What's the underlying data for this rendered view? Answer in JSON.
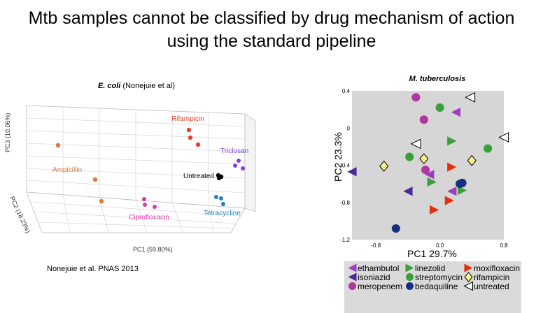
{
  "slide": {
    "title_line1": "Mtb samples cannot be classified by drug mechanism of action",
    "title_line2": "using the standard pipeline"
  },
  "left_panel": {
    "title_bold": "E. coli",
    "title_rest": " (Nonejuie et al)",
    "citation": "Nonejuie et al. PNAS 2013"
  },
  "chart_data": [
    {
      "type": "scatter",
      "title": "E. coli (Nonejuie et al)",
      "xlabel": "PC1 (59.80%)",
      "ylabel": "PC2 (18.23%)",
      "zlabel": "PC3 (10.06%)",
      "projection": "3d",
      "grid": true,
      "groups": [
        {
          "name": "Rifampicin",
          "color": "#e8412c"
        },
        {
          "name": "Triclosan",
          "color": "#8a3fd1"
        },
        {
          "name": "Ampicillin",
          "color": "#e07a3a"
        },
        {
          "name": "Untreated",
          "color": "#000000"
        },
        {
          "name": "Ciprofloxacin",
          "color": "#d63aa8"
        },
        {
          "name": "Tetracycline",
          "color": "#1f82c2"
        }
      ]
    },
    {
      "type": "scatter",
      "title": "M. tuberculosis",
      "xlabel": "PC1 29.7%",
      "ylabel": "PC2 23.3%",
      "xlim": [
        -1.1,
        0.8
      ],
      "ylim": [
        -1.2,
        0.4
      ],
      "xticks": [
        "-0.8",
        "0.0",
        "0.8"
      ],
      "yticks": [
        "0.4",
        "0",
        "-0.4",
        "-0.8",
        "-1.2"
      ],
      "grid": false,
      "legend_position": "bottom",
      "series": [
        {
          "name": "ethambutol",
          "marker": "tri-left",
          "color": "#a03cc0",
          "points": [
            [
              0.2,
              0.17
            ],
            [
              -0.13,
              -0.5
            ],
            [
              0.15,
              -0.68
            ]
          ]
        },
        {
          "name": "isoniazid",
          "marker": "tri-left",
          "color": "#4b2a9a",
          "points": [
            [
              -1.1,
              -0.47
            ],
            [
              -0.4,
              -0.68
            ]
          ]
        },
        {
          "name": "meropenem",
          "marker": "circle",
          "color": "#b2369f",
          "points": [
            [
              -0.3,
              0.33
            ],
            [
              -0.2,
              0.09
            ],
            [
              -0.18,
              -0.45
            ]
          ]
        },
        {
          "name": "linezolid",
          "marker": "tri-right",
          "color": "#3aa03a",
          "points": [
            [
              0.15,
              -0.14
            ],
            [
              -0.1,
              -0.58
            ],
            [
              0.28,
              -0.67
            ]
          ]
        },
        {
          "name": "streptomycin",
          "marker": "circle",
          "color": "#3aa03a",
          "points": [
            [
              0.0,
              0.22
            ],
            [
              -0.38,
              -0.31
            ],
            [
              0.6,
              -0.22
            ]
          ]
        },
        {
          "name": "moxifloxacin",
          "marker": "tri-right",
          "color": "#e53010",
          "points": [
            [
              0.15,
              -0.42
            ],
            [
              -0.07,
              -0.88
            ],
            [
              0.12,
              -0.78
            ]
          ]
        },
        {
          "name": "bedaquiline",
          "marker": "circle",
          "color": "#1a2e80",
          "points": [
            [
              -0.55,
              -1.08
            ],
            [
              0.25,
              -0.6
            ],
            [
              0.28,
              -0.59
            ]
          ]
        },
        {
          "name": "rifampicin",
          "marker": "diamond",
          "color": "#f5f08a",
          "points": [
            [
              -0.7,
              -0.41
            ],
            [
              -0.2,
              -0.33
            ],
            [
              0.4,
              -0.35
            ]
          ]
        },
        {
          "name": "untreated",
          "marker": "tri-left",
          "color": "#ffffff",
          "points": [
            [
              0.38,
              0.33
            ],
            [
              0.8,
              -0.1
            ],
            [
              -0.3,
              -0.17
            ]
          ]
        }
      ]
    }
  ],
  "mtb_panel": {
    "title": "M. tuberculosis",
    "xlabel": "PC1 29.7%",
    "ylabel": "PC2 23.3%",
    "legend": [
      {
        "label": "ethambutol",
        "marker": "tri-left",
        "color": "#a03cc0"
      },
      {
        "label": "linezolid",
        "marker": "tri-right",
        "color": "#3aa03a"
      },
      {
        "label": "moxifloxacin",
        "marker": "tri-right",
        "color": "#e53010"
      },
      {
        "label": "isoniazid",
        "marker": "tri-left",
        "color": "#4b2a9a"
      },
      {
        "label": "streptomycin",
        "marker": "circle",
        "color": "#3aa03a"
      },
      {
        "label": "rifampicin",
        "marker": "diamond",
        "color": "#f5f08a"
      },
      {
        "label": "meropenem",
        "marker": "circle",
        "color": "#b2369f"
      },
      {
        "label": "bedaquiline",
        "marker": "circle",
        "color": "#1a2e80"
      },
      {
        "label": "untreated",
        "marker": "tri-left",
        "color": "#ffffff"
      }
    ]
  },
  "ecoli_panel": {
    "labels": {
      "rifampicin": "Rifampicin",
      "triclosan": "Triclosan",
      "ampicillin": "Ampicillin",
      "untreated": "Untreated",
      "ciprofloxacin": "Ciprofloxacin",
      "tetracycline": "Tetracycline"
    },
    "colors": {
      "rifampicin": "#e8412c",
      "triclosan": "#8a3fd1",
      "ampicillin": "#e07a3a",
      "untreated": "#000000",
      "ciprofloxacin": "#d63aa8",
      "tetracycline": "#1f82c2"
    },
    "axis_pc1": "PC1 (59.80%)",
    "axis_pc2": "PC2 (18.23%)",
    "axis_pc3": "PC3 (10.06%)"
  }
}
